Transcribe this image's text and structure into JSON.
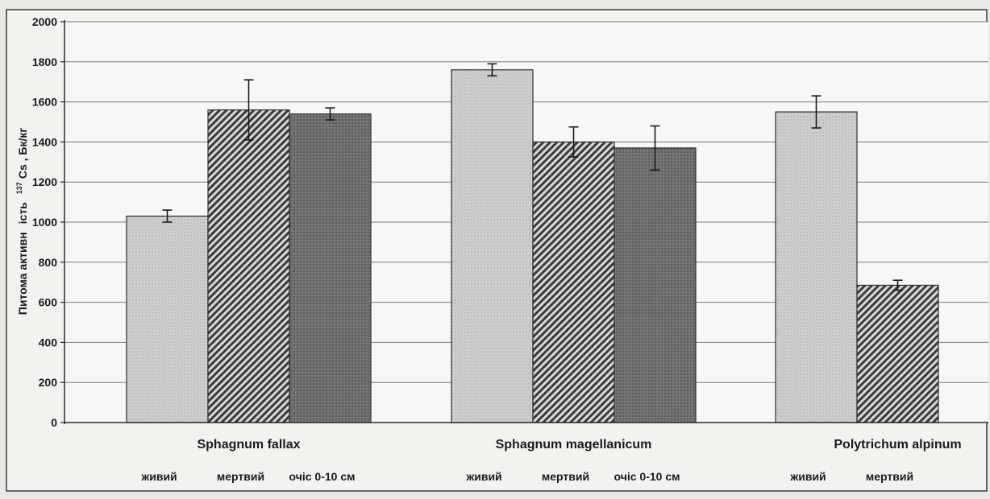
{
  "chart_data": {
    "type": "bar",
    "title": "",
    "ylabel_parts": [
      "Питома активн",
      "ість",
      "137",
      "Cs , Бк/кг"
    ],
    "ylim": [
      0,
      2000
    ],
    "yticks": [
      "0",
      "200",
      "400",
      "600",
      "800",
      "1000",
      "1200",
      "1400",
      "1600",
      "1800",
      "2000"
    ],
    "grid": true,
    "groups": [
      {
        "name": "Sphagnum fallax",
        "bars": [
          {
            "label": "живий",
            "value": 1030,
            "err": 30,
            "pattern": "dots-light"
          },
          {
            "label": "мертвий",
            "value": 1560,
            "err": 150,
            "pattern": "hatch"
          },
          {
            "label": "очіс 0-10 см",
            "value": 1540,
            "err": 30,
            "pattern": "dots-dark"
          }
        ]
      },
      {
        "name": "Sphagnum magellanicum",
        "bars": [
          {
            "label": "живий",
            "value": 1760,
            "err": 30,
            "pattern": "dots-light"
          },
          {
            "label": "мертвий",
            "value": 1400,
            "err": 75,
            "pattern": "hatch"
          },
          {
            "label": "очіс 0-10 см",
            "value": 1370,
            "err": 110,
            "pattern": "dots-dark"
          }
        ]
      },
      {
        "name": "Polytrichum alpinum",
        "bars": [
          {
            "label": "живий",
            "value": 1550,
            "err": 80,
            "pattern": "dots-light"
          },
          {
            "label": "мертвий",
            "value": 685,
            "err": 25,
            "pattern": "hatch"
          }
        ]
      }
    ]
  },
  "colors": {
    "background": "#e9e9e6",
    "plot": "#f4f4f2",
    "grid": "#7a7a7a",
    "axis": "#2a2a2a",
    "bar_light": "#c9c9c7",
    "bar_dark": "#6e6e6e",
    "hatch_bg": "#e0e0de",
    "hatch_line": "#3a3a3a"
  }
}
